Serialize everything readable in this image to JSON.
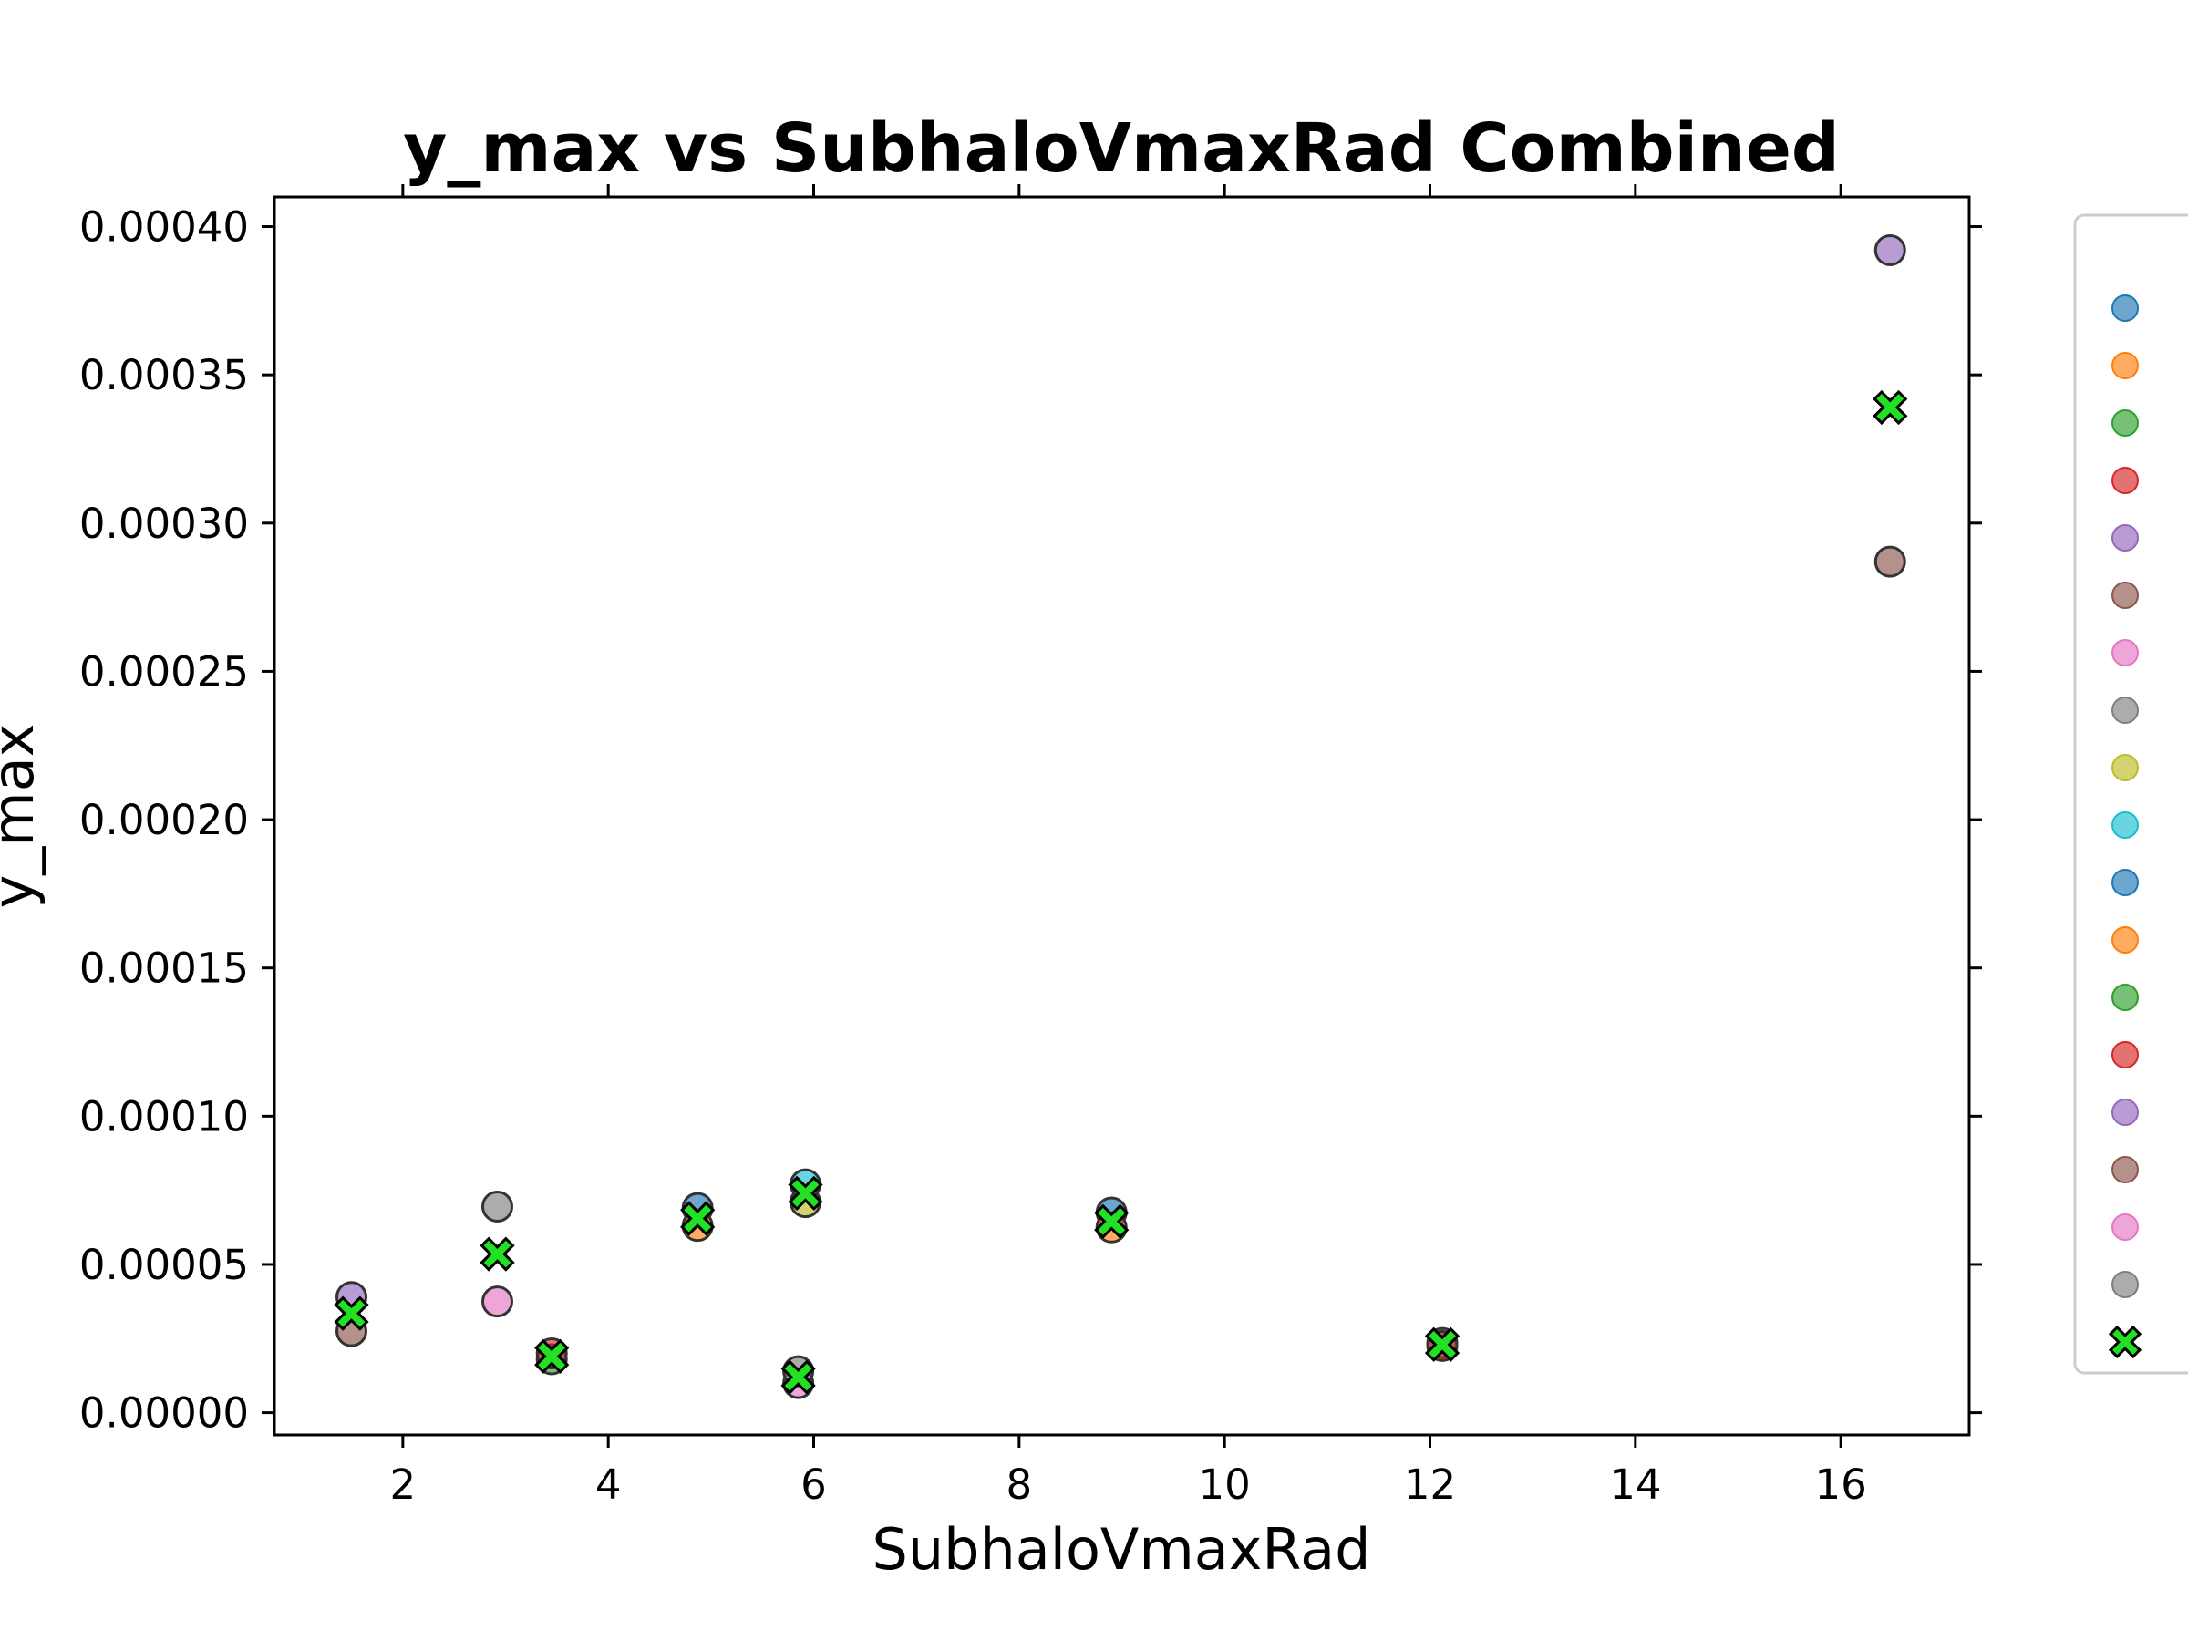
{
  "chart_data": {
    "type": "scatter",
    "title": "y_max vs SubhaloVmaxRad Combined",
    "xlabel": "SubhaloVmaxRad",
    "ylabel": "y_max",
    "xlim": [
      0.75,
      17.25
    ],
    "ylim": [
      -7.5e-06,
      0.00041
    ],
    "x_ticks": [
      "2",
      "4",
      "6",
      "8",
      "10",
      "12",
      "14",
      "16"
    ],
    "x_tick_values": [
      2,
      4,
      6,
      8,
      10,
      12,
      14,
      16
    ],
    "y_ticks": [
      "0.00000",
      "0.00005",
      "0.00010",
      "0.00015",
      "0.00020",
      "0.00025",
      "0.00030",
      "0.00035",
      "0.00040"
    ],
    "y_tick_values": [
      0,
      5e-05,
      0.0001,
      0.00015,
      0.0002,
      0.00025,
      0.0003,
      0.00035,
      0.0004
    ],
    "grid": false,
    "legend_placement": "right, outside plot",
    "series": [
      {
        "color": "#1f77b4",
        "marker": "circle",
        "points": [
          {
            "x": 4.87,
            "y": 6.9e-05
          },
          {
            "x": 8.9,
            "y": 6.75e-05
          }
        ]
      },
      {
        "color": "#ff7f0e",
        "marker": "circle",
        "points": [
          {
            "x": 4.87,
            "y": 6.3e-05
          },
          {
            "x": 8.9,
            "y": 6.25e-05
          }
        ]
      },
      {
        "color": "#2ca02c",
        "marker": "circle",
        "points": [
          {
            "x": 3.45,
            "y": 1.8e-05
          },
          {
            "x": 12.12,
            "y": 2.35e-05
          }
        ]
      },
      {
        "color": "#d62728",
        "marker": "circle",
        "points": [
          {
            "x": 3.45,
            "y": 2e-05
          },
          {
            "x": 12.12,
            "y": 2.25e-05
          }
        ]
      },
      {
        "color": "#9467bd",
        "marker": "circle",
        "points": [
          {
            "x": 1.5,
            "y": 3.9e-05
          },
          {
            "x": 16.48,
            "y": 0.000392
          }
        ]
      },
      {
        "color": "#8c564b",
        "marker": "circle",
        "points": [
          {
            "x": 1.5,
            "y": 2.75e-05
          },
          {
            "x": 16.48,
            "y": 0.000287
          }
        ]
      },
      {
        "color": "#e377c2",
        "marker": "circle",
        "points": [
          {
            "x": 2.92,
            "y": 3.75e-05
          },
          {
            "x": 5.85,
            "y": 1e-05
          }
        ]
      },
      {
        "color": "#7f7f7f",
        "marker": "circle",
        "points": [
          {
            "x": 2.92,
            "y": 6.95e-05
          },
          {
            "x": 5.85,
            "y": 1.4e-05
          }
        ]
      },
      {
        "color": "#bcbd22",
        "marker": "circle",
        "points": [
          {
            "x": 5.92,
            "y": 7.1e-05
          }
        ]
      },
      {
        "color": "#17becf",
        "marker": "circle",
        "points": [
          {
            "x": 5.92,
            "y": 7.7e-05
          }
        ]
      },
      {
        "color": "#1f77b4",
        "marker": "circle",
        "points": []
      },
      {
        "color": "#ff7f0e",
        "marker": "circle",
        "points": []
      },
      {
        "color": "#2ca02c",
        "marker": "circle",
        "points": []
      },
      {
        "color": "#d62728",
        "marker": "circle",
        "points": []
      },
      {
        "color": "#9467bd",
        "marker": "circle",
        "points": []
      },
      {
        "color": "#8c564b",
        "marker": "circle",
        "points": []
      },
      {
        "color": "#e377c2",
        "marker": "circle",
        "points": []
      },
      {
        "color": "#7f7f7f",
        "marker": "circle",
        "points": []
      },
      {
        "color": "#22e022",
        "marker": "x",
        "points": [
          {
            "x": 1.5,
            "y": 3.35e-05
          },
          {
            "x": 2.92,
            "y": 5.35e-05
          },
          {
            "x": 3.45,
            "y": 1.9e-05
          },
          {
            "x": 4.87,
            "y": 6.55e-05
          },
          {
            "x": 5.85,
            "y": 1.2e-05
          },
          {
            "x": 5.92,
            "y": 7.4e-05
          },
          {
            "x": 8.9,
            "y": 6.45e-05
          },
          {
            "x": 12.12,
            "y": 2.3e-05
          },
          {
            "x": 16.48,
            "y": 0.000339
          }
        ]
      }
    ]
  }
}
